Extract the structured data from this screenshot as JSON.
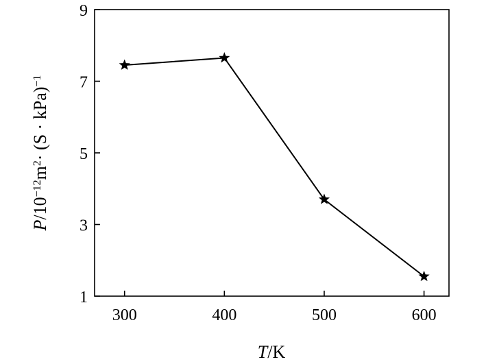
{
  "chart_data": {
    "type": "line",
    "x": [
      300,
      400,
      500,
      600
    ],
    "series": [
      {
        "values": [
          7.45,
          7.65,
          3.7,
          1.55
        ],
        "color": "#000000",
        "marker": "star"
      }
    ],
    "xlabel": {
      "var": "T",
      "unit": "/K"
    },
    "ylabel": {
      "var": "P",
      "sep": "/",
      "base": "10",
      "exp": "−12",
      "unit_part1": "m",
      "exp2": "2",
      "unit_part2": "· (S · kPa)",
      "exp3": "−1"
    },
    "xlim": [
      270,
      625
    ],
    "ylim": [
      1,
      9
    ],
    "xticks": [
      300,
      400,
      500,
      600
    ],
    "yticks": [
      1,
      3,
      5,
      7,
      9
    ],
    "grid": false,
    "legend": "none"
  }
}
